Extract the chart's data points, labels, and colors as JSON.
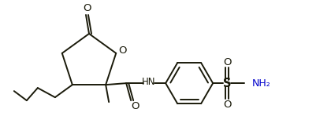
{
  "bg_color": "#ffffff",
  "line_color": "#1a1a0a",
  "line_width": 1.4,
  "label_color_blue": "#0000cc",
  "label_fontsize": 8.5,
  "figsize": [
    4.2,
    1.76
  ],
  "dpi": 100,
  "xlim": [
    0,
    420
  ],
  "ylim": [
    0,
    176
  ]
}
